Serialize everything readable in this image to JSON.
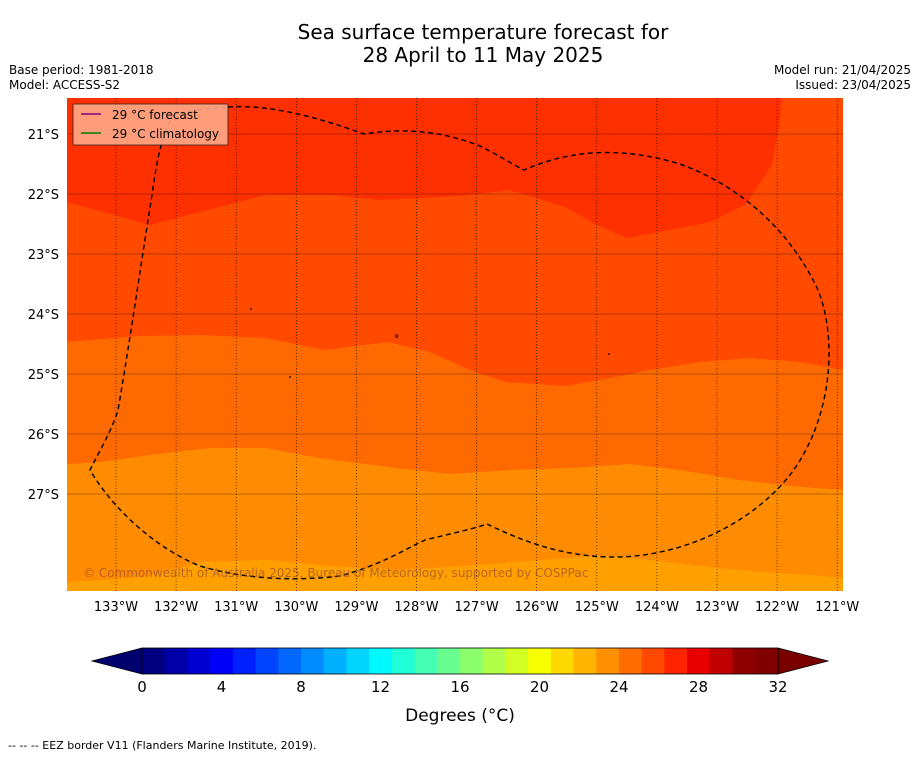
{
  "title": {
    "line1": "Sea surface temperature forecast for",
    "line2": "28 April to 11 May 2025"
  },
  "meta": {
    "base_period": "Base period: 1981-2018",
    "model": "Model: ACCESS-S2",
    "model_run": "Model run: 21/04/2025",
    "issued": "Issued: 23/04/2025"
  },
  "legend": {
    "forecast": "29 °C  forecast",
    "climatology": "29 °C  climatology",
    "forecast_color": "#800080",
    "climatology_color": "#008000"
  },
  "axes": {
    "lon_ticks": [
      "133°W",
      "132°W",
      "131°W",
      "130°W",
      "129°W",
      "128°W",
      "127°W",
      "126°W",
      "125°W",
      "124°W",
      "123°W",
      "122°W",
      "121°W"
    ],
    "lat_ticks": [
      "21°S",
      "22°S",
      "23°S",
      "24°S",
      "25°S",
      "26°S",
      "27°S"
    ]
  },
  "copyright": "© Commonwealth of Australia 2025, Bureau of Meteorology, supported by COSPPac",
  "colorbar": {
    "label": "Degrees ($^\\circ$C)",
    "label_display": "Degrees (°C)",
    "tick_labels": [
      "0",
      "4",
      "8",
      "12",
      "16",
      "20",
      "24",
      "28",
      "32"
    ],
    "colors": [
      "#000080",
      "#0000a8",
      "#0000d0",
      "#0000f8",
      "#0020ff",
      "#0044ff",
      "#0068ff",
      "#008cff",
      "#00b0ff",
      "#00d4ff",
      "#00f8ff",
      "#20ffd8",
      "#44ffb4",
      "#68ff90",
      "#8cff6c",
      "#b0ff48",
      "#d4ff24",
      "#f8ff00",
      "#ffd800",
      "#ffb400",
      "#ff9000",
      "#ff6c00",
      "#ff4800",
      "#ff2400",
      "#e80000",
      "#c00000",
      "#900000",
      "#800000"
    ],
    "under_color": "#00006e",
    "over_color": "#7a0000"
  },
  "map_colors": {
    "band_27_28": "#ff8c00",
    "band_28_29": "#ff6a00",
    "band_29_30": "#ff4a00",
    "band_30_31": "#ff3000",
    "band_26_27": "#ffa000"
  },
  "footer": "--  --  -- EEZ border V11 (Flanders Marine Institute, 2019)."
}
